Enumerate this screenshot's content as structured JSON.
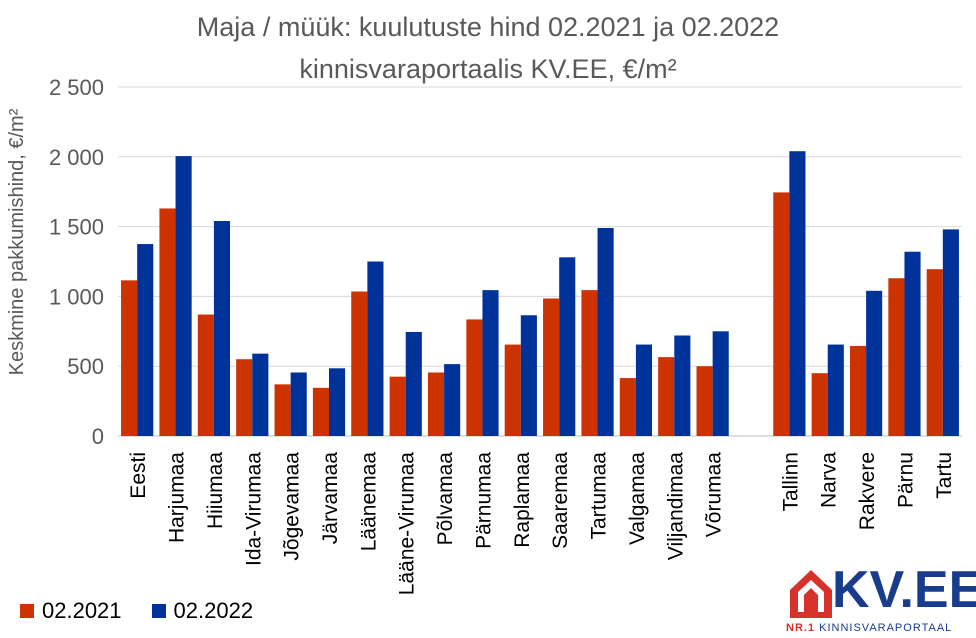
{
  "chart_data": {
    "type": "bar",
    "title": "Maja / müük: kuulutuste hind 02.2021 ja 02.2022",
    "subtitle": "kinnisvaraportaalis KV.EE, €/m²",
    "ylabel": "Keskmine pakkumishind, €/m²",
    "xlabel": "",
    "ylim": [
      0,
      2500
    ],
    "yticks": [
      0,
      500,
      1000,
      1500,
      2000,
      2500
    ],
    "ytick_labels": [
      "0",
      "500",
      "1 000",
      "1 500",
      "2 000",
      "2 500"
    ],
    "grid": true,
    "legend_position": "bottom-left",
    "categories": [
      "Eesti",
      "Harjumaa",
      "Hiiumaa",
      "Ida-Virumaa",
      "Jõgevamaa",
      "Järvamaa",
      "Läänemaa",
      "Lääne-Virumaa",
      "Põlvamaa",
      "Pärnumaa",
      "Raplamaa",
      "Saaremaa",
      "Tartumaa",
      "Valgamaa",
      "Viljandimaa",
      "Võrumaa",
      "",
      "Tallinn",
      "Narva",
      "Rakvere",
      "Pärnu",
      "Tartu"
    ],
    "series": [
      {
        "name": "02.2021",
        "color": "#cc3300",
        "values": [
          1115,
          1630,
          870,
          550,
          370,
          345,
          1035,
          425,
          455,
          835,
          655,
          985,
          1045,
          415,
          565,
          500,
          null,
          1745,
          450,
          645,
          1130,
          1195
        ]
      },
      {
        "name": "02.2022",
        "color": "#003399",
        "values": [
          1375,
          2005,
          1540,
          590,
          455,
          485,
          1250,
          745,
          515,
          1045,
          865,
          1280,
          1490,
          655,
          720,
          750,
          null,
          2040,
          655,
          1040,
          1320,
          1480
        ]
      }
    ]
  },
  "logo": {
    "brand": "KV.EE",
    "tag_prefix": "NR.1",
    "tag": "KINNISVARAPORTAAL",
    "color": "#1a3c8c",
    "accent": "#d6312b",
    "icon": "house-icon"
  }
}
